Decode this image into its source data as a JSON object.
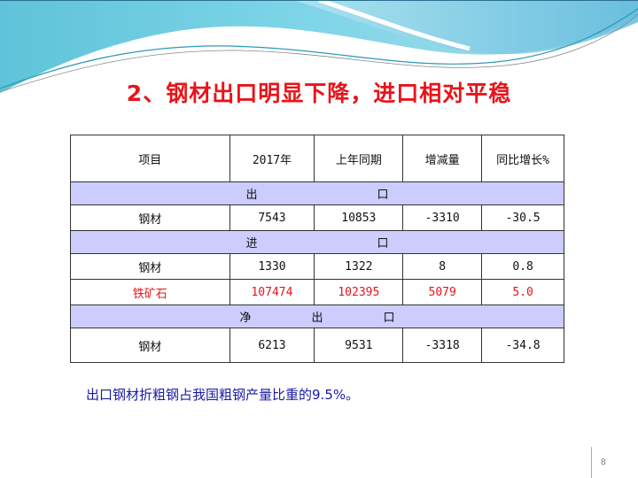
{
  "title": "2、钢材出口明显下降，进口相对平稳",
  "table": {
    "headers": [
      "项目",
      "2017年",
      "上年同期",
      "增减量",
      "同比增长%"
    ],
    "sections": [
      {
        "label_parts": [
          "出",
          "口"
        ],
        "rows": [
          {
            "cells": [
              "钢材",
              "7543",
              "10853",
              "-3310",
              "-30.5"
            ],
            "highlight": false
          }
        ]
      },
      {
        "label_parts": [
          "进",
          "口"
        ],
        "rows": [
          {
            "cells": [
              "钢材",
              "1330",
              "1322",
              "8",
              "0.8"
            ],
            "highlight": false
          },
          {
            "cells": [
              "铁矿石",
              "107474",
              "102395",
              "5079",
              "5.0"
            ],
            "highlight": true
          }
        ]
      },
      {
        "label_parts": [
          "净",
          "出",
          "口"
        ],
        "rows": [
          {
            "cells": [
              "钢材",
              "6213",
              "9531",
              "-3318",
              "-34.8"
            ],
            "highlight": false
          }
        ]
      }
    ]
  },
  "note": "出口钢材折粗钢占我国粗钢产量比重的9.5%。",
  "page_number": "8",
  "colors": {
    "title": "#e8141a",
    "section_bg": "#ccccff",
    "note": "#1a1aa6",
    "highlight": "#e8141a"
  }
}
